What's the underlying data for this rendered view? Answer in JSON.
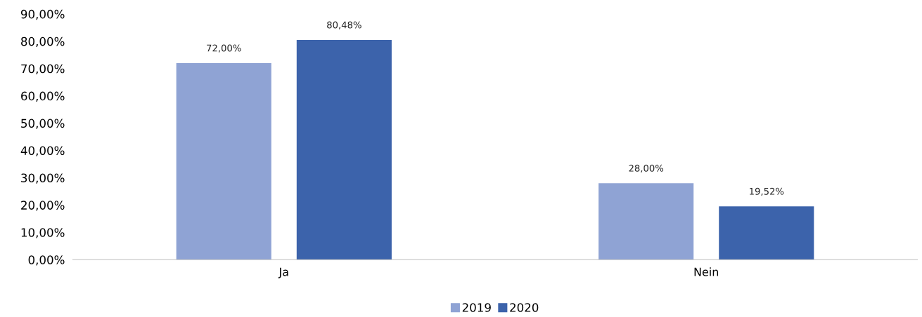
{
  "chart_data": {
    "type": "bar",
    "categories": [
      "Ja",
      "Nein"
    ],
    "series": [
      {
        "name": "2019",
        "color": "#8fa3d4",
        "values": [
          72,
          28
        ],
        "value_labels": [
          "72,00%",
          "28,00%"
        ]
      },
      {
        "name": "2020",
        "color": "#3c63ab",
        "values": [
          80.48,
          19.52
        ],
        "value_labels": [
          "80,48%",
          "19,52%"
        ]
      }
    ],
    "ylim": [
      0,
      90
    ],
    "yticks": [
      {
        "value": 0,
        "label": "0,00%"
      },
      {
        "value": 10,
        "label": "10,00%"
      },
      {
        "value": 20,
        "label": "20,00%"
      },
      {
        "value": 30,
        "label": "30,00%"
      },
      {
        "value": 40,
        "label": "40,00%"
      },
      {
        "value": 50,
        "label": "50,00%"
      },
      {
        "value": 60,
        "label": "60,00%"
      },
      {
        "value": 70,
        "label": "70,00%"
      },
      {
        "value": 80,
        "label": "80,00%"
      },
      {
        "value": 90,
        "label": "90,00%"
      }
    ],
    "grid": false,
    "legend": "bottom"
  }
}
